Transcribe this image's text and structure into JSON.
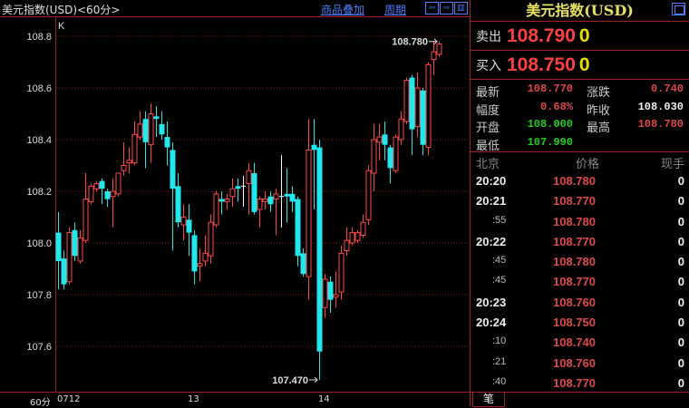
{
  "header": {
    "title": "美元指数(USD)<60分>",
    "overlay_link": "商品叠加",
    "period_link": "周期",
    "btn_left": "⇦",
    "btn_right": "⇨",
    "btn_split": "▥"
  },
  "chart_data": {
    "type": "candlestick",
    "indicator_label": "K",
    "ylim": [
      107.42,
      108.88
    ],
    "yticks": [
      "108.8",
      "108.6",
      "108.4",
      "108.2",
      "108.0",
      "107.8",
      "107.6"
    ],
    "xticks": [
      {
        "index": 0,
        "label": "0712"
      },
      {
        "index": 24,
        "label": "13"
      },
      {
        "index": 48,
        "label": "14"
      }
    ],
    "period_label": "60分",
    "high_label": "108.780",
    "low_label": "107.470",
    "colors": {
      "up": "#ff4848",
      "down": "#20e8ec",
      "flat": "#ffffff",
      "grid": "#7a1a1a"
    },
    "ohlc": [
      [
        108.04,
        108.12,
        107.82,
        107.93
      ],
      [
        107.94,
        107.97,
        107.82,
        107.84
      ],
      [
        107.85,
        108.06,
        107.84,
        108.04
      ],
      [
        108.05,
        108.08,
        107.93,
        107.95
      ],
      [
        107.93,
        108.05,
        107.92,
        108.02
      ],
      [
        108.01,
        108.27,
        108.0,
        108.17
      ],
      [
        108.16,
        108.23,
        108.15,
        108.22
      ],
      [
        108.21,
        108.24,
        108.2,
        108.23
      ],
      [
        108.24,
        108.25,
        108.15,
        108.21
      ],
      [
        108.2,
        108.21,
        108.14,
        108.17
      ],
      [
        108.18,
        108.25,
        108.06,
        108.2
      ],
      [
        108.19,
        108.27,
        108.18,
        108.27
      ],
      [
        108.28,
        108.39,
        108.26,
        108.3
      ],
      [
        108.31,
        108.37,
        108.27,
        108.32
      ],
      [
        108.31,
        108.47,
        108.3,
        108.42
      ],
      [
        108.41,
        108.51,
        108.4,
        108.46
      ],
      [
        108.48,
        108.51,
        108.29,
        108.39
      ],
      [
        108.38,
        108.54,
        108.31,
        108.5
      ],
      [
        108.49,
        108.53,
        108.41,
        108.48
      ],
      [
        108.46,
        108.51,
        108.4,
        108.42
      ],
      [
        108.41,
        108.47,
        108.3,
        108.37
      ],
      [
        108.36,
        108.39,
        107.97,
        108.21
      ],
      [
        108.22,
        108.27,
        108.06,
        108.08
      ],
      [
        108.07,
        108.15,
        108.01,
        108.1
      ],
      [
        108.09,
        108.15,
        107.95,
        108.04
      ],
      [
        108.03,
        108.05,
        107.84,
        107.89
      ],
      [
        107.91,
        107.98,
        107.85,
        107.92
      ],
      [
        107.93,
        108.03,
        107.91,
        107.96
      ],
      [
        107.95,
        108.11,
        107.92,
        108.08
      ],
      [
        108.07,
        108.2,
        108.06,
        108.19
      ],
      [
        108.17,
        108.2,
        108.11,
        108.16
      ],
      [
        108.16,
        108.19,
        108.13,
        108.17
      ],
      [
        108.18,
        108.25,
        108.14,
        108.21
      ],
      [
        108.22,
        108.25,
        108.16,
        108.21
      ],
      [
        108.22,
        108.26,
        108.14,
        108.22
      ],
      [
        108.23,
        108.31,
        108.11,
        108.28
      ],
      [
        108.27,
        108.31,
        108.11,
        108.12
      ],
      [
        108.13,
        108.18,
        108.06,
        108.17
      ],
      [
        108.16,
        108.2,
        108.13,
        108.17
      ],
      [
        108.18,
        108.2,
        108.12,
        108.15
      ],
      [
        108.17,
        108.21,
        108.03,
        108.19
      ],
      [
        108.18,
        108.34,
        108.06,
        108.18
      ],
      [
        108.19,
        108.29,
        108.08,
        108.18
      ],
      [
        108.19,
        108.22,
        108.12,
        108.16
      ],
      [
        108.17,
        108.18,
        107.91,
        107.95
      ],
      [
        107.96,
        107.98,
        107.87,
        107.88
      ],
      [
        107.87,
        108.48,
        107.78,
        108.36
      ],
      [
        108.38,
        108.48,
        108.13,
        108.36
      ],
      [
        108.37,
        108.4,
        107.47,
        107.58
      ],
      [
        107.75,
        107.88,
        107.71,
        107.86
      ],
      [
        107.85,
        107.87,
        107.73,
        107.78
      ],
      [
        107.79,
        107.89,
        107.75,
        107.8
      ],
      [
        107.81,
        107.99,
        107.78,
        107.96
      ],
      [
        107.97,
        108.06,
        107.95,
        108.01
      ],
      [
        108.0,
        108.06,
        107.99,
        108.04
      ],
      [
        108.01,
        108.05,
        108.0,
        108.04
      ],
      [
        108.03,
        108.11,
        108.02,
        108.08
      ],
      [
        108.09,
        108.3,
        108.07,
        108.28
      ],
      [
        108.27,
        108.46,
        108.2,
        108.4
      ],
      [
        108.39,
        108.46,
        108.32,
        108.41
      ],
      [
        108.42,
        108.47,
        108.32,
        108.38
      ],
      [
        108.37,
        108.38,
        108.23,
        108.29
      ],
      [
        108.28,
        108.42,
        108.27,
        108.41
      ],
      [
        108.4,
        108.51,
        108.38,
        108.48
      ],
      [
        108.47,
        108.64,
        108.46,
        108.63
      ],
      [
        108.64,
        108.65,
        108.34,
        108.44
      ],
      [
        108.45,
        108.66,
        108.41,
        108.6
      ],
      [
        108.59,
        108.6,
        108.34,
        108.38
      ],
      [
        108.37,
        108.7,
        108.34,
        108.69
      ],
      [
        108.71,
        108.78,
        108.65,
        108.74
      ],
      [
        108.73,
        108.78,
        108.72,
        108.77
      ]
    ]
  },
  "panel": {
    "title": "美元指数(USD)",
    "sell": {
      "label": "卖出",
      "price": "108.790",
      "volume": "0"
    },
    "buy": {
      "label": "买入",
      "price": "108.750",
      "volume": "0"
    },
    "stats": {
      "latest_label": "最新",
      "latest": "108.770",
      "change_label": "涨跌",
      "change": "0.740",
      "amp_label": "幅度",
      "amp": "0.68%",
      "prev_label": "昨收",
      "prev": "108.030",
      "open_label": "开盘",
      "open": "108.000",
      "high_label": "最高",
      "high": "108.780",
      "low_label": "最低",
      "low": "107.990"
    },
    "ticks_header": {
      "time": "北京",
      "price": "价格",
      "volume": "现手"
    },
    "ticks": [
      {
        "time": "20:20",
        "price": "108.780",
        "volume": "0",
        "sub": false
      },
      {
        "time": "20:21",
        "price": "108.770",
        "volume": "0",
        "sub": false
      },
      {
        "time": ":55",
        "price": "108.780",
        "volume": "0",
        "sub": true
      },
      {
        "time": "20:22",
        "price": "108.770",
        "volume": "0",
        "sub": false
      },
      {
        "time": ":45",
        "price": "108.780",
        "volume": "0",
        "sub": true
      },
      {
        "time": ":45",
        "price": "108.770",
        "volume": "0",
        "sub": true
      },
      {
        "time": "20:23",
        "price": "108.760",
        "volume": "0",
        "sub": false
      },
      {
        "time": "20:24",
        "price": "108.750",
        "volume": "0",
        "sub": false
      },
      {
        "time": ":10",
        "price": "108.740",
        "volume": "0",
        "sub": true
      },
      {
        "time": ":21",
        "price": "108.760",
        "volume": "0",
        "sub": true
      },
      {
        "time": ":40",
        "price": "108.770",
        "volume": "0",
        "sub": true
      }
    ],
    "footer_tab": "笔"
  }
}
